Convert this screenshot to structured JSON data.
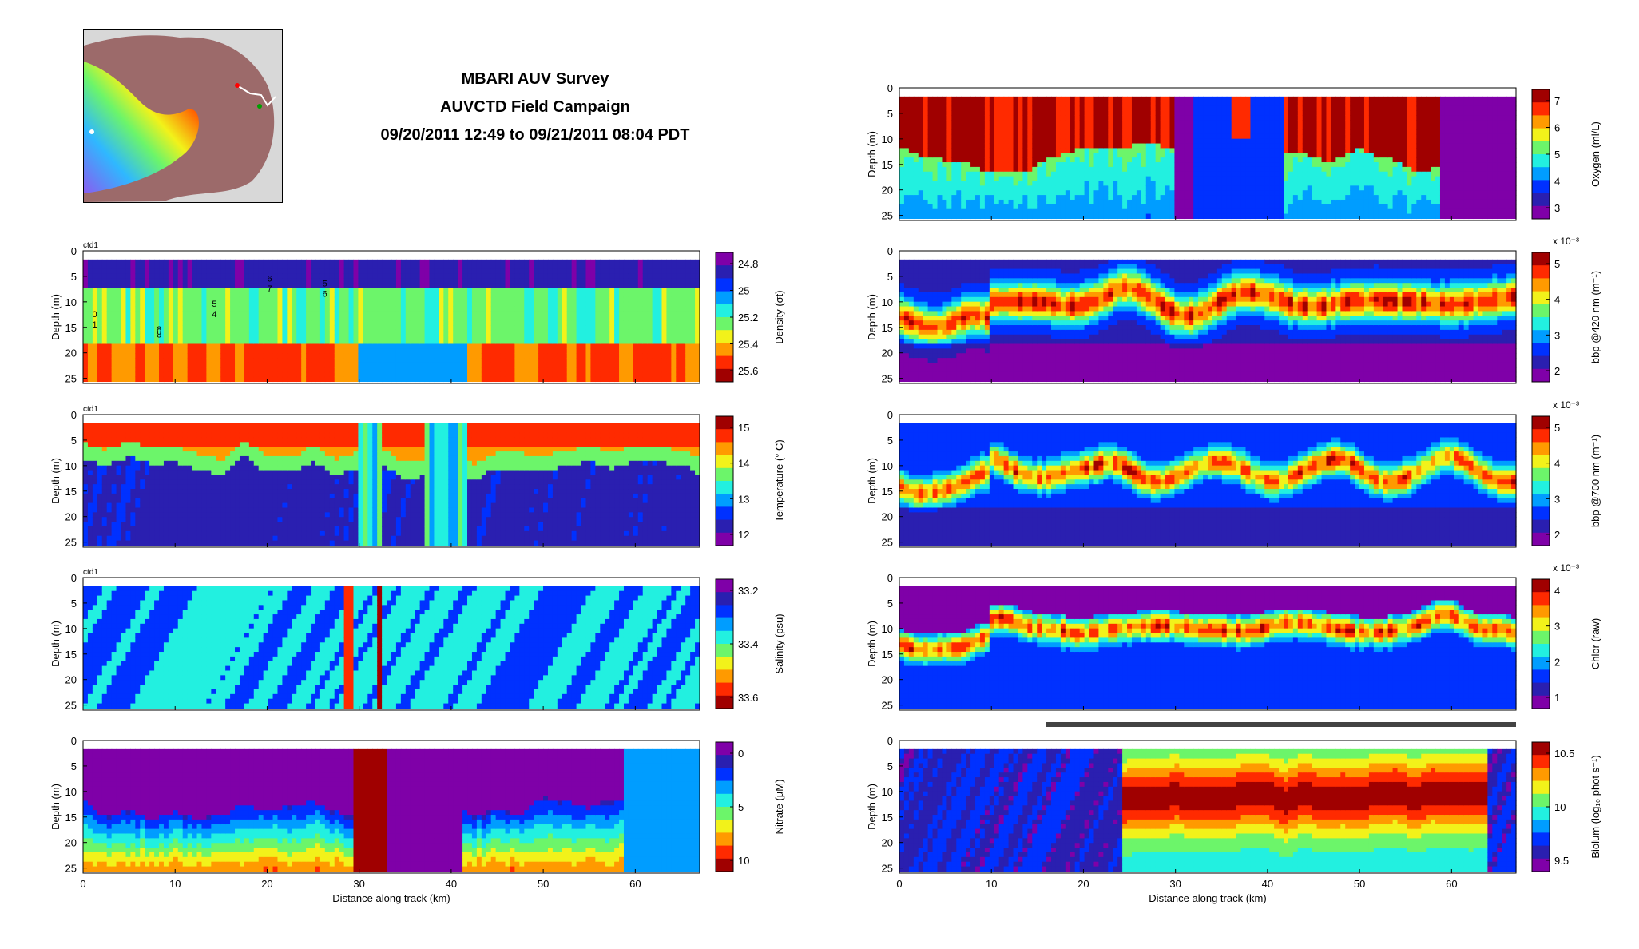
{
  "title": {
    "line1": "MBARI AUV Survey",
    "line2": "AUVCTD Field Campaign",
    "line3": "09/20/2011 12:49 to 09/21/2011 08:04 PDT"
  },
  "colors": {
    "jet": [
      "#7f00a8",
      "#2a1fb0",
      "#0031ff",
      "#009dff",
      "#22f0e0",
      "#6cf56a",
      "#f2f21a",
      "#ff9a00",
      "#ff2a00",
      "#a00000"
    ]
  },
  "chart_data": [
    {
      "type": "heatmap",
      "panel": "density",
      "tag": "ctd1",
      "ylabel": "Depth (m)",
      "xlabel": "",
      "yticks": [
        "0",
        "5",
        "10",
        "15",
        "20",
        "25"
      ],
      "xticks": [],
      "ylim": [
        0,
        26
      ],
      "xlim": [
        0,
        67
      ],
      "colorbar": {
        "label": "Density (σt)",
        "ticks": [
          "24.8",
          "25",
          "25.2",
          "25.4",
          "25.6"
        ],
        "reversed": true
      },
      "pattern": "density",
      "station_labels": [
        "0",
        "1",
        "8",
        "8",
        "5",
        "4",
        "6",
        "7",
        "5",
        "6"
      ]
    },
    {
      "type": "heatmap",
      "panel": "temperature",
      "tag": "ctd1",
      "ylabel": "Depth (m)",
      "xlabel": "",
      "yticks": [
        "0",
        "5",
        "10",
        "15",
        "20",
        "25"
      ],
      "xticks": [],
      "ylim": [
        0,
        26
      ],
      "xlim": [
        0,
        67
      ],
      "colorbar": {
        "label": "Temperature (° C)",
        "ticks": [
          "15",
          "14",
          "13",
          "12"
        ],
        "reversed": false
      },
      "pattern": "temperature"
    },
    {
      "type": "heatmap",
      "panel": "salinity",
      "tag": "ctd1",
      "ylabel": "Depth (m)",
      "xlabel": "",
      "yticks": [
        "0",
        "5",
        "10",
        "15",
        "20",
        "25"
      ],
      "xticks": [],
      "ylim": [
        0,
        26
      ],
      "xlim": [
        0,
        67
      ],
      "colorbar": {
        "label": "Salinity (psu)",
        "ticks": [
          "33.2",
          "33.4",
          "33.6"
        ],
        "reversed": true
      },
      "pattern": "salinity"
    },
    {
      "type": "heatmap",
      "panel": "nitrate",
      "tag": "",
      "ylabel": "Depth (m)",
      "xlabel": "Distance along track (km)",
      "yticks": [
        "0",
        "5",
        "10",
        "15",
        "20",
        "25"
      ],
      "xticks": [
        "0",
        "10",
        "20",
        "30",
        "40",
        "50",
        "60"
      ],
      "ylim": [
        0,
        26
      ],
      "xlim": [
        0,
        67
      ],
      "colorbar": {
        "label": "Nitrate (µM)",
        "ticks": [
          "0",
          "5",
          "10"
        ],
        "reversed": true
      },
      "pattern": "nitrate"
    },
    {
      "type": "heatmap",
      "panel": "oxygen",
      "tag": "",
      "ylabel": "Depth (m)",
      "xlabel": "",
      "yticks": [
        "0",
        "5",
        "10",
        "15",
        "20",
        "25"
      ],
      "xticks": [],
      "ylim": [
        0,
        26
      ],
      "xlim": [
        0,
        67
      ],
      "colorbar": {
        "label": "Oxygen (ml/L)",
        "ticks": [
          "7",
          "6",
          "5",
          "4",
          "3"
        ],
        "reversed": false
      },
      "pattern": "oxygen"
    },
    {
      "type": "heatmap",
      "panel": "bbp420",
      "tag": "",
      "ylabel": "Depth (m)",
      "xlabel": "",
      "yticks": [
        "0",
        "5",
        "10",
        "15",
        "20",
        "25"
      ],
      "xticks": [],
      "ylim": [
        0,
        26
      ],
      "xlim": [
        0,
        67
      ],
      "colorbar": {
        "label": "bbp @420 nm (m⁻¹)",
        "ticks": [
          "5",
          "4",
          "3",
          "2"
        ],
        "reversed": false,
        "exponent": "x 10⁻³"
      },
      "pattern": "bbp420"
    },
    {
      "type": "heatmap",
      "panel": "bbp700",
      "tag": "",
      "ylabel": "Depth (m)",
      "xlabel": "",
      "yticks": [
        "0",
        "5",
        "10",
        "15",
        "20",
        "25"
      ],
      "xticks": [],
      "ylim": [
        0,
        26
      ],
      "xlim": [
        0,
        67
      ],
      "colorbar": {
        "label": "bbp @700 nm (m⁻¹)",
        "ticks": [
          "5",
          "4",
          "3",
          "2"
        ],
        "reversed": false,
        "exponent": "x 10⁻³"
      },
      "pattern": "bbp700"
    },
    {
      "type": "heatmap",
      "panel": "chlor",
      "tag": "",
      "ylabel": "Depth (m)",
      "xlabel": "",
      "yticks": [
        "0",
        "5",
        "10",
        "15",
        "20",
        "25"
      ],
      "xticks": [],
      "ylim": [
        0,
        26
      ],
      "xlim": [
        0,
        67
      ],
      "colorbar": {
        "label": "Chlor (raw)",
        "ticks": [
          "4",
          "3",
          "2",
          "1"
        ],
        "reversed": false,
        "exponent": "x 10⁻³"
      },
      "pattern": "chlor"
    },
    {
      "type": "heatmap",
      "panel": "biolum",
      "tag": "",
      "ylabel": "Depth (m)",
      "xlabel": "Distance along track (km)",
      "yticks": [
        "0",
        "5",
        "10",
        "15",
        "20",
        "25"
      ],
      "xticks": [
        "0",
        "10",
        "20",
        "30",
        "40",
        "50",
        "60"
      ],
      "ylim": [
        0,
        26
      ],
      "xlim": [
        0,
        67
      ],
      "colorbar": {
        "label": "Biolum (log₁₀ phot s⁻¹)",
        "ticks": [
          "10.5",
          "10",
          "9.5"
        ],
        "reversed": false
      },
      "pattern": "biolum"
    }
  ]
}
